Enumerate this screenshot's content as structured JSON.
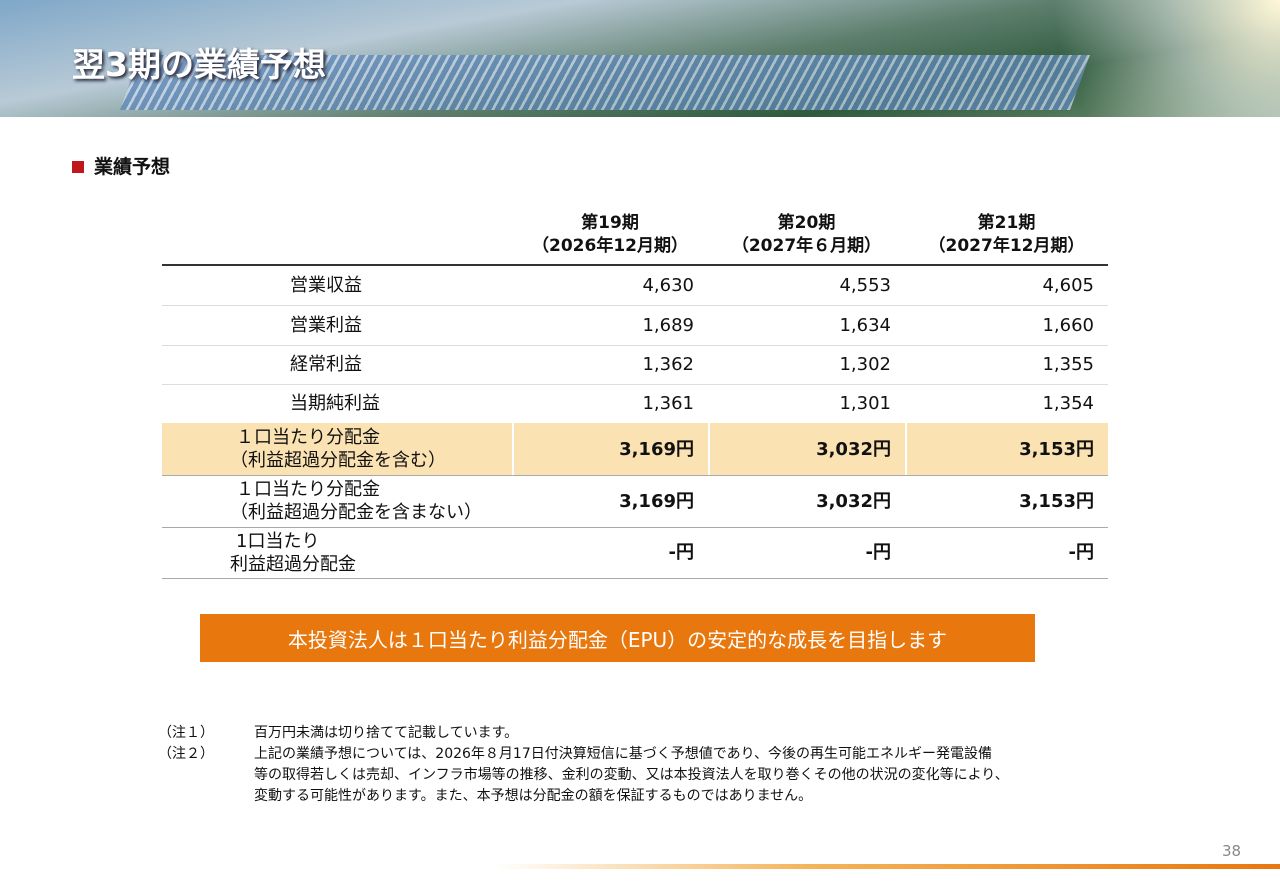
{
  "header": {
    "title": "翌3期の業績予想"
  },
  "section": {
    "title": "業績予想"
  },
  "table": {
    "columns": [
      {
        "period": "第19期",
        "term": "（2026年12月期）"
      },
      {
        "period": "第20期",
        "term": "（2027年６月期）"
      },
      {
        "period": "第21期",
        "term": "（2027年12月期）"
      }
    ],
    "rows": [
      {
        "label": [
          "営業収益"
        ],
        "values": [
          "4,630",
          "4,553",
          "4,605"
        ]
      },
      {
        "label": [
          "営業利益"
        ],
        "values": [
          "1,689",
          "1,634",
          "1,660"
        ]
      },
      {
        "label": [
          "経常利益"
        ],
        "values": [
          "1,362",
          "1,302",
          "1,355"
        ]
      },
      {
        "label": [
          "当期純利益"
        ],
        "values": [
          "1,361",
          "1,301",
          "1,354"
        ]
      },
      {
        "label": [
          "１口当たり分配金",
          "（利益超過分配金を含む）"
        ],
        "values": [
          "3,169円",
          "3,032円",
          "3,153円"
        ]
      },
      {
        "label": [
          "１口当たり分配金",
          "（利益超過分配金を含まない）"
        ],
        "values": [
          "3,169円",
          "3,032円",
          "3,153円"
        ]
      },
      {
        "label": [
          "1口当たり",
          "利益超過分配金"
        ],
        "values": [
          "-円",
          "-円",
          "-円"
        ]
      }
    ]
  },
  "banner": "本投資法人は１口当たり利益分配金（EPU）の安定的な成長を目指します",
  "notes": [
    {
      "marker": "（注１）",
      "lines": [
        "百万円未満は切り捨てて記載しています。"
      ]
    },
    {
      "marker": "（注２）",
      "lines": [
        "上記の業績予想については、2026年８月17日付決算短信に基づく予想値であり、今後の再生可能エネルギー発電設備",
        "等の取得若しくは売却、インフラ市場等の推移、金利の変動、又は本投資法人を取り巻くその他の状況の変化等により、",
        "変動する可能性があります。また、本予想は分配金の額を保証するものではありません。"
      ]
    }
  ],
  "page_number": "38"
}
